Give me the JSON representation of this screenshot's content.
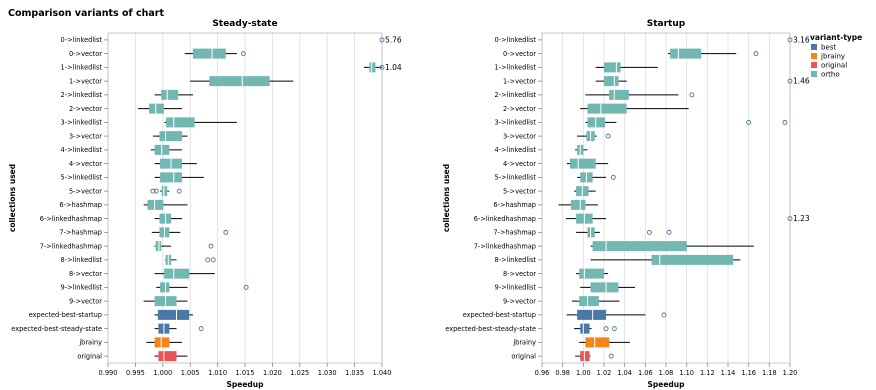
{
  "page_title": "Comparison variants of chart",
  "chart_data": [
    {
      "type": "boxplot",
      "title": "Steady-state",
      "xlabel": "Speedup",
      "ylabel": "collections used",
      "xlim": [
        0.99,
        1.04
      ],
      "xticks": [
        0.99,
        0.995,
        1.0,
        1.005,
        1.01,
        1.015,
        1.02,
        1.025,
        1.03,
        1.035,
        1.04
      ],
      "xtick_labels": [
        "0.990",
        "0.995",
        "1.000",
        "1.005",
        "1.010",
        "1.015",
        "1.020",
        "1.025",
        "1.030",
        "1.035",
        "1.040"
      ],
      "grid": true,
      "categories": [
        "0->linkedlist",
        "0->vector",
        "1->linkedlist",
        "1->vector",
        "2->linkedlist",
        "2->vector",
        "3->linkedlist",
        "3->vector",
        "4->linkedlist",
        "4->vector",
        "5->linkedlist",
        "5->vector",
        "6->hashmap",
        "6->linkedhashmap",
        "7->hashmap",
        "7->linkedhashmap",
        "8->linkedlist",
        "8->vector",
        "9->linkedlist",
        "9->vector",
        "expected-best-startup",
        "expected-best-steady-state",
        "jbrainy",
        "original"
      ],
      "boxes": [
        {
          "whisker": [
            null,
            null
          ],
          "q1": null,
          "median": null,
          "q3": null,
          "outliers": [],
          "variant": "ortho",
          "clip_label": "5.76"
        },
        {
          "whisker": [
            1.004,
            1.0135
          ],
          "q1": 1.0055,
          "median": 1.009,
          "q3": 1.0115,
          "outliers": [
            1.0147
          ],
          "variant": "ortho"
        },
        {
          "whisker": [
            1.0367,
            1.0403
          ],
          "q1": 1.0377,
          "median": 1.0381,
          "q3": 1.0388,
          "outliers": [],
          "variant": "ortho",
          "clip_label": "1.04"
        },
        {
          "whisker": [
            1.005,
            1.0238
          ],
          "q1": 1.0085,
          "median": 1.0145,
          "q3": 1.0195,
          "outliers": [],
          "variant": "ortho"
        },
        {
          "whisker": [
            0.9985,
            1.0055
          ],
          "q1": 0.9997,
          "median": 1.0008,
          "q3": 1.0028,
          "outliers": [],
          "variant": "ortho"
        },
        {
          "whisker": [
            0.9955,
            1.0035
          ],
          "q1": 0.9975,
          "median": 0.9987,
          "q3": 1.0002,
          "outliers": [],
          "variant": "ortho"
        },
        {
          "whisker": [
            1.0003,
            1.0135
          ],
          "q1": 1.0006,
          "median": 1.002,
          "q3": 1.0058,
          "outliers": [],
          "variant": "ortho"
        },
        {
          "whisker": [
            0.9982,
            1.0045
          ],
          "q1": 0.9994,
          "median": 1.0005,
          "q3": 1.0035,
          "outliers": [],
          "variant": "ortho"
        },
        {
          "whisker": [
            0.9978,
            1.0035
          ],
          "q1": 0.9985,
          "median": 0.9998,
          "q3": 1.0012,
          "outliers": [],
          "variant": "ortho"
        },
        {
          "whisker": [
            0.9985,
            1.0062
          ],
          "q1": 0.9995,
          "median": 1.0015,
          "q3": 1.0035,
          "outliers": [],
          "variant": "ortho"
        },
        {
          "whisker": [
            0.9985,
            1.0075
          ],
          "q1": 0.9995,
          "median": 1.002,
          "q3": 1.0035,
          "outliers": [],
          "variant": "ortho"
        },
        {
          "whisker": [
            0.9995,
            1.0012
          ],
          "q1": 0.9998,
          "median": 1.0002,
          "q3": 1.0008,
          "outliers": [
            0.9982,
            0.9988,
            1.003
          ],
          "variant": "ortho"
        },
        {
          "whisker": [
            0.9965,
            1.0045
          ],
          "q1": 0.9972,
          "median": 0.9985,
          "q3": 1.0001,
          "outliers": [],
          "variant": "ortho"
        },
        {
          "whisker": [
            0.9985,
            1.0035
          ],
          "q1": 0.9994,
          "median": 1.0005,
          "q3": 1.0015,
          "outliers": [],
          "variant": "ortho"
        },
        {
          "whisker": [
            0.998,
            1.0032
          ],
          "q1": 0.9994,
          "median": 1.0003,
          "q3": 1.0012,
          "outliers": [
            1.0115
          ],
          "variant": "ortho"
        },
        {
          "whisker": [
            0.9985,
            1.0015
          ],
          "q1": 0.9987,
          "median": 0.9993,
          "q3": 0.9997,
          "outliers": [
            1.0088
          ],
          "variant": "ortho"
        },
        {
          "whisker": [
            1.0004,
            1.0025
          ],
          "q1": 1.0005,
          "median": 1.001,
          "q3": 1.0015,
          "outliers": [
            1.0082,
            1.0092
          ],
          "variant": "ortho"
        },
        {
          "whisker": [
            0.9985,
            1.0095
          ],
          "q1": 1.0002,
          "median": 1.002,
          "q3": 1.0048,
          "outliers": [],
          "variant": "ortho"
        },
        {
          "whisker": [
            0.9988,
            1.0045
          ],
          "q1": 0.9995,
          "median": 1.0005,
          "q3": 1.0012,
          "outliers": [
            1.0152
          ],
          "variant": "ortho"
        },
        {
          "whisker": [
            0.9965,
            1.0045
          ],
          "q1": 0.9985,
          "median": 1.0005,
          "q3": 1.0025,
          "outliers": [],
          "variant": "ortho"
        },
        {
          "whisker": [
            0.9985,
            1.0055
          ],
          "q1": 0.9991,
          "median": 1.0025,
          "q3": 1.0048,
          "outliers": [],
          "variant": "best"
        },
        {
          "whisker": [
            0.9985,
            1.0025
          ],
          "q1": 0.9992,
          "median": 1.0002,
          "q3": 1.0012,
          "outliers": [
            1.007
          ],
          "variant": "best"
        },
        {
          "whisker": [
            0.997,
            1.0035
          ],
          "q1": 0.9985,
          "median": 0.9997,
          "q3": 1.0012,
          "outliers": [],
          "variant": "jbrainy"
        },
        {
          "whisker": [
            0.9985,
            1.0045
          ],
          "q1": 0.9992,
          "median": 1.0002,
          "q3": 1.0025,
          "outliers": [],
          "variant": "original"
        }
      ]
    },
    {
      "type": "boxplot",
      "title": "Startup",
      "xlabel": "Speedup",
      "ylabel": "collections used",
      "xlim": [
        0.96,
        1.2
      ],
      "xticks": [
        0.96,
        0.98,
        1.0,
        1.02,
        1.04,
        1.06,
        1.08,
        1.1,
        1.12,
        1.14,
        1.16,
        1.18,
        1.2
      ],
      "xtick_labels": [
        "0.96",
        "0.98",
        "1.00",
        "1.02",
        "1.04",
        "1.06",
        "1.08",
        "1.10",
        "1.12",
        "1.14",
        "1.16",
        "1.18",
        "1.20"
      ],
      "grid": true,
      "categories": [
        "0->linkedlist",
        "0->vector",
        "1->linkedlist",
        "1->vector",
        "2->linkedlist",
        "2->vector",
        "3->linkedlist",
        "3->vector",
        "4->linkedlist",
        "4->vector",
        "5->linkedlist",
        "5->vector",
        "6->hashmap",
        "6->linkedhashmap",
        "7->hashmap",
        "7->linkedhashmap",
        "8->linkedlist",
        "8->vector",
        "9->linkedlist",
        "9->vector",
        "expected-best-startup",
        "expected-best-steady-state",
        "jbrainy",
        "original"
      ],
      "boxes": [
        {
          "whisker": [
            null,
            null
          ],
          "q1": null,
          "median": null,
          "q3": null,
          "outliers": [],
          "variant": "ortho",
          "clip_label": "3.16"
        },
        {
          "whisker": [
            1.082,
            1.148
          ],
          "q1": 1.084,
          "median": 1.092,
          "q3": 1.114,
          "outliers": [
            1.167
          ],
          "variant": "ortho"
        },
        {
          "whisker": [
            1.012,
            1.072
          ],
          "q1": 1.02,
          "median": 1.032,
          "q3": 1.036,
          "outliers": [],
          "variant": "ortho"
        },
        {
          "whisker": [
            1.012,
            1.042
          ],
          "q1": 1.02,
          "median": 1.03,
          "q3": 1.034,
          "outliers": [],
          "variant": "ortho",
          "clip_label": "1.46"
        },
        {
          "whisker": [
            1.002,
            1.092
          ],
          "q1": 1.025,
          "median": 1.03,
          "q3": 1.044,
          "outliers": [
            1.105
          ],
          "variant": "ortho"
        },
        {
          "whisker": [
            0.997,
            1.102
          ],
          "q1": 1.004,
          "median": 1.017,
          "q3": 1.042,
          "outliers": [],
          "variant": "ortho"
        },
        {
          "whisker": [
            1.002,
            1.032
          ],
          "q1": 1.004,
          "median": 1.012,
          "q3": 1.021,
          "outliers": [
            1.16,
            1.195
          ],
          "variant": "ortho"
        },
        {
          "whisker": [
            0.994,
            1.013
          ],
          "q1": 1.003,
          "median": 1.007,
          "q3": 1.011,
          "outliers": [
            1.024
          ],
          "variant": "ortho"
        },
        {
          "whisker": [
            0.992,
            1.004
          ],
          "q1": 0.994,
          "median": 0.997,
          "q3": 1.0,
          "outliers": [],
          "variant": "ortho"
        },
        {
          "whisker": [
            0.984,
            1.024
          ],
          "q1": 0.987,
          "median": 0.995,
          "q3": 1.012,
          "outliers": [],
          "variant": "ortho"
        },
        {
          "whisker": [
            0.994,
            1.022
          ],
          "q1": 0.997,
          "median": 1.003,
          "q3": 1.009,
          "outliers": [
            1.029
          ],
          "variant": "ortho"
        },
        {
          "whisker": [
            0.991,
            1.012
          ],
          "q1": 0.993,
          "median": 0.999,
          "q3": 1.005,
          "outliers": [],
          "variant": "ortho"
        },
        {
          "whisker": [
            0.976,
            1.014
          ],
          "q1": 0.988,
          "median": 0.997,
          "q3": 1.002,
          "outliers": [],
          "variant": "ortho"
        },
        {
          "whisker": [
            0.983,
            1.022
          ],
          "q1": 0.993,
          "median": 1.001,
          "q3": 1.009,
          "outliers": [],
          "variant": "ortho",
          "clip_label": "1.23"
        },
        {
          "whisker": [
            0.993,
            1.016
          ],
          "q1": 1.004,
          "median": 1.007,
          "q3": 1.011,
          "outliers": [
            1.064,
            1.083
          ],
          "variant": "ortho"
        },
        {
          "whisker": [
            1.007,
            1.165
          ],
          "q1": 1.009,
          "median": 1.022,
          "q3": 1.1,
          "outliers": [],
          "variant": "ortho"
        },
        {
          "whisker": [
            1.007,
            1.152
          ],
          "q1": 1.066,
          "median": 1.074,
          "q3": 1.145,
          "outliers": [],
          "variant": "ortho"
        },
        {
          "whisker": [
            0.993,
            1.024
          ],
          "q1": 0.996,
          "median": 1.001,
          "q3": 1.02,
          "outliers": [],
          "variant": "ortho"
        },
        {
          "whisker": [
            0.997,
            1.05
          ],
          "q1": 1.007,
          "median": 1.022,
          "q3": 1.034,
          "outliers": [],
          "variant": "ortho"
        },
        {
          "whisker": [
            0.989,
            1.035
          ],
          "q1": 0.996,
          "median": 1.004,
          "q3": 1.015,
          "outliers": [],
          "variant": "ortho"
        },
        {
          "whisker": [
            0.984,
            1.06
          ],
          "q1": 0.994,
          "median": 1.009,
          "q3": 1.022,
          "outliers": [
            1.078
          ],
          "variant": "best"
        },
        {
          "whisker": [
            0.991,
            1.008
          ],
          "q1": 0.997,
          "median": 1.0,
          "q3": 1.006,
          "outliers": [
            1.022,
            1.03
          ],
          "variant": "best"
        },
        {
          "whisker": [
            0.996,
            1.045
          ],
          "q1": 1.002,
          "median": 1.011,
          "q3": 1.025,
          "outliers": [],
          "variant": "jbrainy"
        },
        {
          "whisker": [
            0.992,
            1.007
          ],
          "q1": 0.997,
          "median": 1.001,
          "q3": 1.006,
          "outliers": [
            1.027
          ],
          "variant": "original"
        }
      ]
    }
  ],
  "legend": {
    "title": "variant-type",
    "placement": "right",
    "entries": [
      {
        "name": "best",
        "color": "#4c78a8"
      },
      {
        "name": "jbrainy",
        "color": "#f58518"
      },
      {
        "name": "original",
        "color": "#e45756"
      },
      {
        "name": "ortho",
        "color": "#72b7b2"
      }
    ]
  },
  "colors": {
    "outlier": "#4c78a8",
    "whisker": "#000000",
    "grid": "#dddddd",
    "median": "#ffffff"
  }
}
